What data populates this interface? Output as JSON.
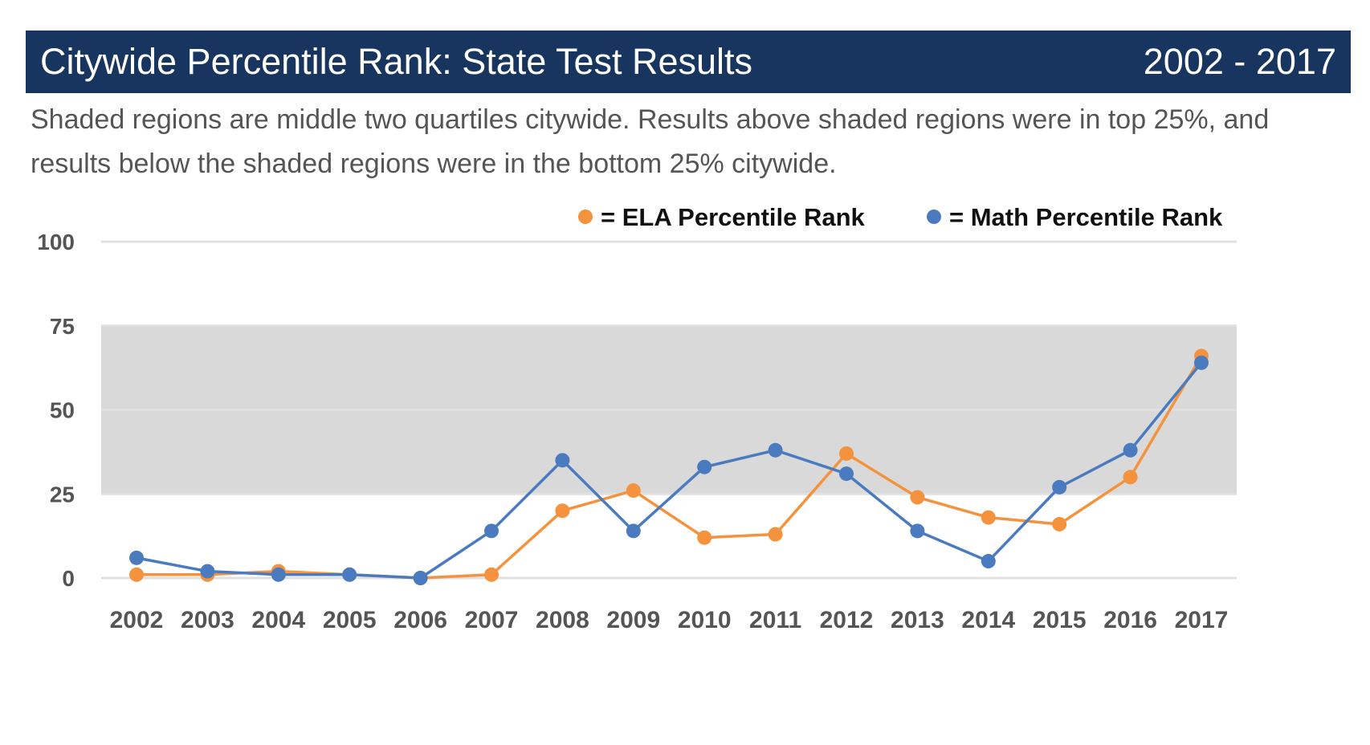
{
  "header": {
    "title": "Citywide Percentile Rank: State Test Results",
    "years": "2002 - 2017",
    "bg_color": "#18355f"
  },
  "subtitle": "Shaded regions are middle two quartiles citywide. Results above shaded regions were in top 25%, and results below the shaded regions were in the bottom 25% citywide.",
  "chart_data": {
    "type": "line",
    "categories": [
      "2002",
      "2003",
      "2004",
      "2005",
      "2006",
      "2007",
      "2008",
      "2009",
      "2010",
      "2011",
      "2012",
      "2013",
      "2014",
      "2015",
      "2016",
      "2017"
    ],
    "series": [
      {
        "name": "= ELA Percentile Rank",
        "color": "#f5923e",
        "values": [
          1,
          1,
          2,
          1,
          0,
          1,
          20,
          26,
          12,
          13,
          37,
          24,
          18,
          16,
          30,
          66
        ]
      },
      {
        "name": "= Math Percentile Rank",
        "color": "#4a7bbf",
        "values": [
          6,
          2,
          1,
          1,
          0,
          14,
          35,
          14,
          33,
          38,
          31,
          14,
          5,
          27,
          38,
          64
        ]
      }
    ],
    "y_ticks": [
      "0",
      "25",
      "50",
      "75",
      "100"
    ],
    "ylim": [
      0,
      100
    ],
    "shaded_band": [
      25,
      75
    ],
    "shaded_color": "#d9d9d9",
    "grid": true,
    "legend_position": "top-right"
  }
}
